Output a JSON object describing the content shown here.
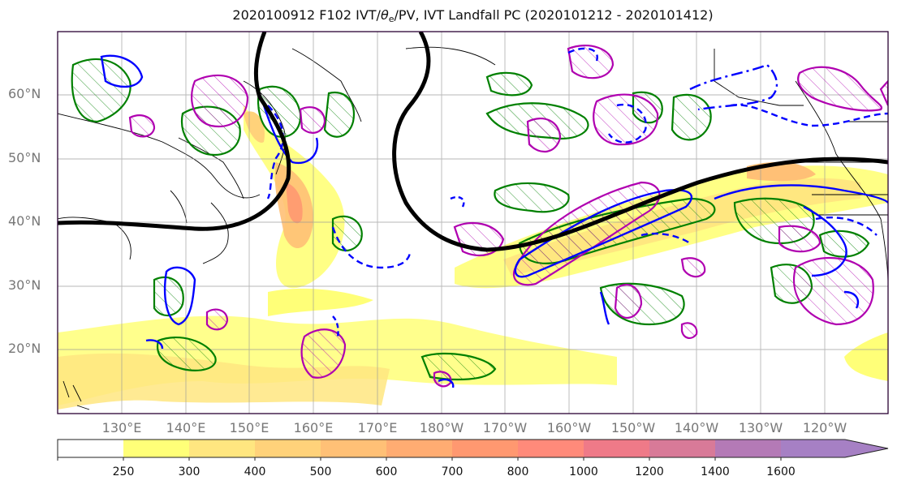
{
  "title_main": "2020100912 F102 IVT/",
  "title_theta": "θ",
  "title_sub": "e",
  "title_rest": "/PV, IVT Landfall PC (2020101212 - 2020101412)",
  "lat_labels": [
    "60°N",
    "50°N",
    "40°N",
    "30°N",
    "20°N"
  ],
  "lon_labels": [
    "130°E",
    "140°E",
    "150°E",
    "160°E",
    "170°E",
    "180°W",
    "170°W",
    "160°W",
    "150°W",
    "140°W",
    "130°W",
    "120°W"
  ],
  "colorbar": {
    "levels": [
      "250",
      "300",
      "400",
      "500",
      "600",
      "700",
      "800",
      "1000",
      "1200",
      "1400",
      "1600"
    ],
    "colors": [
      "#ffffff",
      "#ffff78",
      "#ffe680",
      "#ffd27a",
      "#ffc076",
      "#ffac72",
      "#ff9870",
      "#ff8a7a",
      "#ef7a88",
      "#d87a98",
      "#b47ab6",
      "#a680c4"
    ]
  },
  "chart_data": {
    "type": "contour-map",
    "projection": "cylindrical",
    "lon_range": [
      120,
      250
    ],
    "lat_range": [
      10,
      70
    ],
    "fill_field": "IVT",
    "fill_levels": [
      250,
      300,
      400,
      500,
      600,
      700,
      800,
      1000,
      1200,
      1400,
      1600
    ],
    "contour_colors": {
      "trough_line": "#000000",
      "green": "#008000",
      "blue": "#0000ff",
      "magenta": "#b000b0"
    },
    "grid": true
  }
}
